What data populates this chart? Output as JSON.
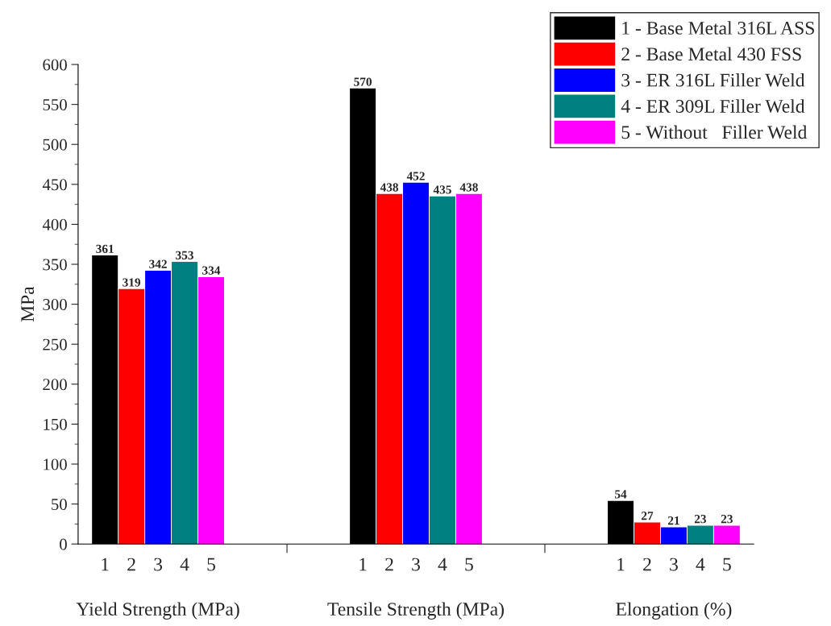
{
  "chart_data": {
    "type": "bar",
    "ylabel": "MPa",
    "categories": [
      "Yield Strength (MPa)",
      "Tensile Strength (MPa)",
      "Elongation (%)"
    ],
    "series": [
      {
        "name": "1 - Base Metal 316L ASS",
        "color": "#000000",
        "values": [
          361,
          570,
          54
        ]
      },
      {
        "name": "2 - Base Metal 430 FSS",
        "color": "#ff0000",
        "values": [
          319,
          438,
          27
        ]
      },
      {
        "name": "3 - ER 316L Filler Weld",
        "color": "#0000ff",
        "values": [
          342,
          452,
          21
        ]
      },
      {
        "name": "4 - ER 309L Filler Weld",
        "color": "#008080",
        "values": [
          353,
          435,
          23
        ]
      },
      {
        "name": "5 - Without   Filler Weld",
        "color": "#ff00ff",
        "values": [
          334,
          438,
          23
        ]
      }
    ],
    "annotations": [
      "1",
      "2",
      "3",
      "4",
      "5"
    ],
    "ylim": [
      0,
      600
    ],
    "yticks": [
      0,
      50,
      100,
      150,
      200,
      250,
      300,
      350,
      400,
      450,
      500,
      550,
      600
    ],
    "data_labels": true,
    "grid": false,
    "legend": "top right"
  }
}
